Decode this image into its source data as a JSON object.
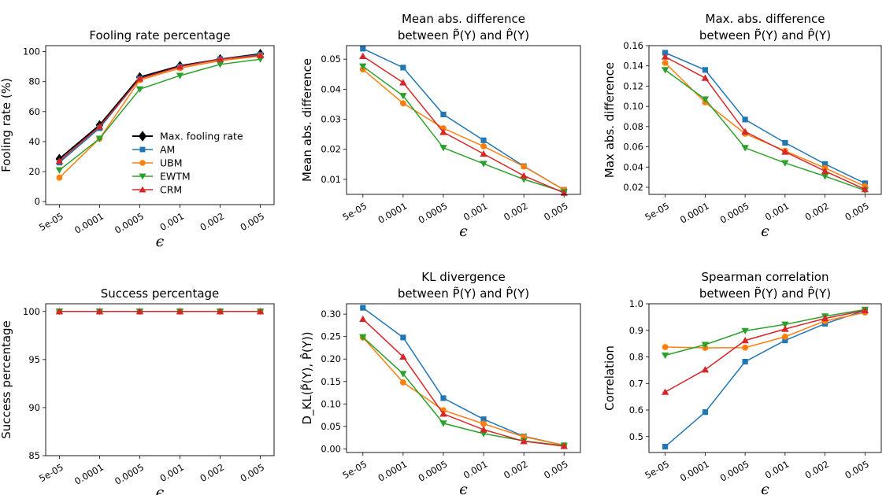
{
  "chart_data": [
    {
      "type": "line",
      "title_lines": [
        "Fooling rate percentage"
      ],
      "xlabel": "ϵ",
      "ylabel": "Fooling rate (%)",
      "categories": [
        "5e-05",
        "0.0001",
        "0.0005",
        "0.001",
        "0.002",
        "0.005"
      ],
      "ylim": [
        -2,
        104
      ],
      "yticks": [
        "0",
        "20",
        "40",
        "60",
        "80",
        "100"
      ],
      "ytick_values": [
        0,
        20,
        40,
        60,
        80,
        100
      ],
      "xtick_rotation": 30,
      "legend": "center-right",
      "series": [
        {
          "name": "Max. fooling rate",
          "color": "#000000",
          "marker": "diamond",
          "values": [
            28.5,
            51,
            83,
            90.5,
            95,
            98.5
          ]
        },
        {
          "name": "AM",
          "color": "#1f77b4",
          "marker": "square",
          "values": [
            26,
            49,
            82,
            90,
            95,
            98
          ]
        },
        {
          "name": "UBM",
          "color": "#ff7f0e",
          "marker": "circle",
          "values": [
            16,
            42,
            81,
            89,
            94,
            97
          ]
        },
        {
          "name": "EWTM",
          "color": "#2ca02c",
          "marker": "triangle-down",
          "values": [
            21,
            42,
            75,
            84,
            91.5,
            95
          ]
        },
        {
          "name": "CRM",
          "color": "#d62728",
          "marker": "triangle-up",
          "values": [
            27,
            50,
            82,
            90,
            95,
            97.5
          ]
        }
      ]
    },
    {
      "type": "line",
      "title_lines": [
        "Mean abs. difference",
        "between P̃(Y) and P̂(Y)"
      ],
      "xlabel": "ϵ",
      "ylabel": "Mean abs. difference",
      "categories": [
        "5e-05",
        "0.0001",
        "0.0005",
        "0.001",
        "0.002",
        "0.005"
      ],
      "ylim": [
        0.005,
        0.0545
      ],
      "yticks": [
        "0.01",
        "0.02",
        "0.03",
        "0.04",
        "0.05"
      ],
      "ytick_values": [
        0.01,
        0.02,
        0.03,
        0.04,
        0.05
      ],
      "xtick_rotation": 30,
      "series": [
        {
          "name": "AM",
          "color": "#1f77b4",
          "marker": "square",
          "values": [
            0.0535,
            0.0472,
            0.0316,
            0.023,
            0.0144,
            0.0065
          ]
        },
        {
          "name": "UBM",
          "color": "#ff7f0e",
          "marker": "circle",
          "values": [
            0.0466,
            0.0353,
            0.027,
            0.021,
            0.0143,
            0.0065
          ]
        },
        {
          "name": "EWTM",
          "color": "#2ca02c",
          "marker": "triangle-down",
          "values": [
            0.0476,
            0.0378,
            0.0205,
            0.0152,
            0.01,
            0.0058
          ]
        },
        {
          "name": "CRM",
          "color": "#d62728",
          "marker": "triangle-up",
          "values": [
            0.051,
            0.0422,
            0.0257,
            0.0185,
            0.0112,
            0.0055
          ]
        }
      ]
    },
    {
      "type": "line",
      "title_lines": [
        "Max. abs. difference",
        "between P̃(Y) and P̂(Y)"
      ],
      "xlabel": "ϵ",
      "ylabel": "Max abs. difference",
      "categories": [
        "5e-05",
        "0.0001",
        "0.0005",
        "0.001",
        "0.002",
        "0.005"
      ],
      "ylim": [
        0.013,
        0.16
      ],
      "yticks": [
        "0.02",
        "0.04",
        "0.06",
        "0.08",
        "0.10",
        "0.12",
        "0.14",
        "0.16"
      ],
      "ytick_values": [
        0.02,
        0.04,
        0.06,
        0.08,
        0.1,
        0.12,
        0.14,
        0.16
      ],
      "xtick_rotation": 30,
      "series": [
        {
          "name": "AM",
          "color": "#1f77b4",
          "marker": "square",
          "values": [
            0.153,
            0.136,
            0.087,
            0.064,
            0.043,
            0.024
          ]
        },
        {
          "name": "UBM",
          "color": "#ff7f0e",
          "marker": "circle",
          "values": [
            0.143,
            0.104,
            0.073,
            0.056,
            0.039,
            0.021
          ]
        },
        {
          "name": "EWTM",
          "color": "#2ca02c",
          "marker": "triangle-down",
          "values": [
            0.136,
            0.107,
            0.059,
            0.044,
            0.031,
            0.017
          ]
        },
        {
          "name": "CRM",
          "color": "#d62728",
          "marker": "triangle-up",
          "values": [
            0.149,
            0.128,
            0.075,
            0.055,
            0.036,
            0.018
          ]
        }
      ]
    },
    {
      "type": "line",
      "title_lines": [
        "Success percentage"
      ],
      "xlabel": "ϵ",
      "ylabel": "Success percentage",
      "categories": [
        "5e-05",
        "0.0001",
        "0.0005",
        "0.001",
        "0.002",
        "0.005"
      ],
      "ylim": [
        85,
        100.8
      ],
      "yticks": [
        "85",
        "90",
        "95",
        "100"
      ],
      "ytick_values": [
        85,
        90,
        95,
        100
      ],
      "xtick_rotation": 30,
      "series": [
        {
          "name": "AM",
          "color": "#1f77b4",
          "marker": "square",
          "values": [
            100,
            100,
            100,
            100,
            100,
            100
          ]
        },
        {
          "name": "UBM",
          "color": "#ff7f0e",
          "marker": "circle",
          "values": [
            100,
            100,
            100,
            100,
            100,
            100
          ]
        },
        {
          "name": "EWTM",
          "color": "#2ca02c",
          "marker": "triangle-down",
          "values": [
            100,
            100,
            100,
            100,
            100,
            100
          ]
        },
        {
          "name": "CRM",
          "color": "#d62728",
          "marker": "triangle-up",
          "values": [
            100,
            100,
            100,
            100,
            100,
            100
          ]
        }
      ]
    },
    {
      "type": "line",
      "title_lines": [
        "KL divergence",
        "between P̃(Y) and P̂(Y)"
      ],
      "xlabel": "ϵ",
      "ylabel": "D_KL(P̃(Y), P̂(Y))",
      "categories": [
        "5e-05",
        "0.0001",
        "0.0005",
        "0.001",
        "0.002",
        "0.005"
      ],
      "ylim": [
        -0.008,
        0.323
      ],
      "yticks": [
        "0.00",
        "0.05",
        "0.10",
        "0.15",
        "0.20",
        "0.25",
        "0.30"
      ],
      "ytick_values": [
        0,
        0.05,
        0.1,
        0.15,
        0.2,
        0.25,
        0.3
      ],
      "xtick_rotation": 30,
      "series": [
        {
          "name": "AM",
          "color": "#1f77b4",
          "marker": "square",
          "values": [
            0.314,
            0.248,
            0.113,
            0.066,
            0.028,
            0.008
          ]
        },
        {
          "name": "UBM",
          "color": "#ff7f0e",
          "marker": "circle",
          "values": [
            0.248,
            0.148,
            0.086,
            0.056,
            0.027,
            0.008
          ]
        },
        {
          "name": "EWTM",
          "color": "#2ca02c",
          "marker": "triangle-down",
          "values": [
            0.249,
            0.167,
            0.057,
            0.034,
            0.018,
            0.007
          ]
        },
        {
          "name": "CRM",
          "color": "#d62728",
          "marker": "triangle-up",
          "values": [
            0.289,
            0.205,
            0.078,
            0.043,
            0.017,
            0.006
          ]
        }
      ]
    },
    {
      "type": "line",
      "title_lines": [
        "Spearman correlation",
        "between P̃(Y) and P̂(Y)"
      ],
      "xlabel": "ϵ",
      "ylabel": "Correlation",
      "categories": [
        "5e-05",
        "0.0001",
        "0.0005",
        "0.001",
        "0.002",
        "0.005"
      ],
      "ylim": [
        0.44,
        1.0
      ],
      "yticks": [
        "0.5",
        "0.6",
        "0.7",
        "0.8",
        "0.9",
        "1.0"
      ],
      "ytick_values": [
        0.5,
        0.6,
        0.7,
        0.8,
        0.9,
        1.0
      ],
      "xtick_rotation": 30,
      "series": [
        {
          "name": "AM",
          "color": "#1f77b4",
          "marker": "square",
          "values": [
            0.462,
            0.592,
            0.782,
            0.862,
            0.925,
            0.975
          ]
        },
        {
          "name": "UBM",
          "color": "#ff7f0e",
          "marker": "circle",
          "values": [
            0.837,
            0.834,
            0.835,
            0.876,
            0.935,
            0.967
          ]
        },
        {
          "name": "EWTM",
          "color": "#2ca02c",
          "marker": "triangle-down",
          "values": [
            0.806,
            0.846,
            0.898,
            0.922,
            0.953,
            0.978
          ]
        },
        {
          "name": "CRM",
          "color": "#d62728",
          "marker": "triangle-up",
          "values": [
            0.668,
            0.752,
            0.862,
            0.905,
            0.945,
            0.975
          ]
        }
      ]
    }
  ]
}
